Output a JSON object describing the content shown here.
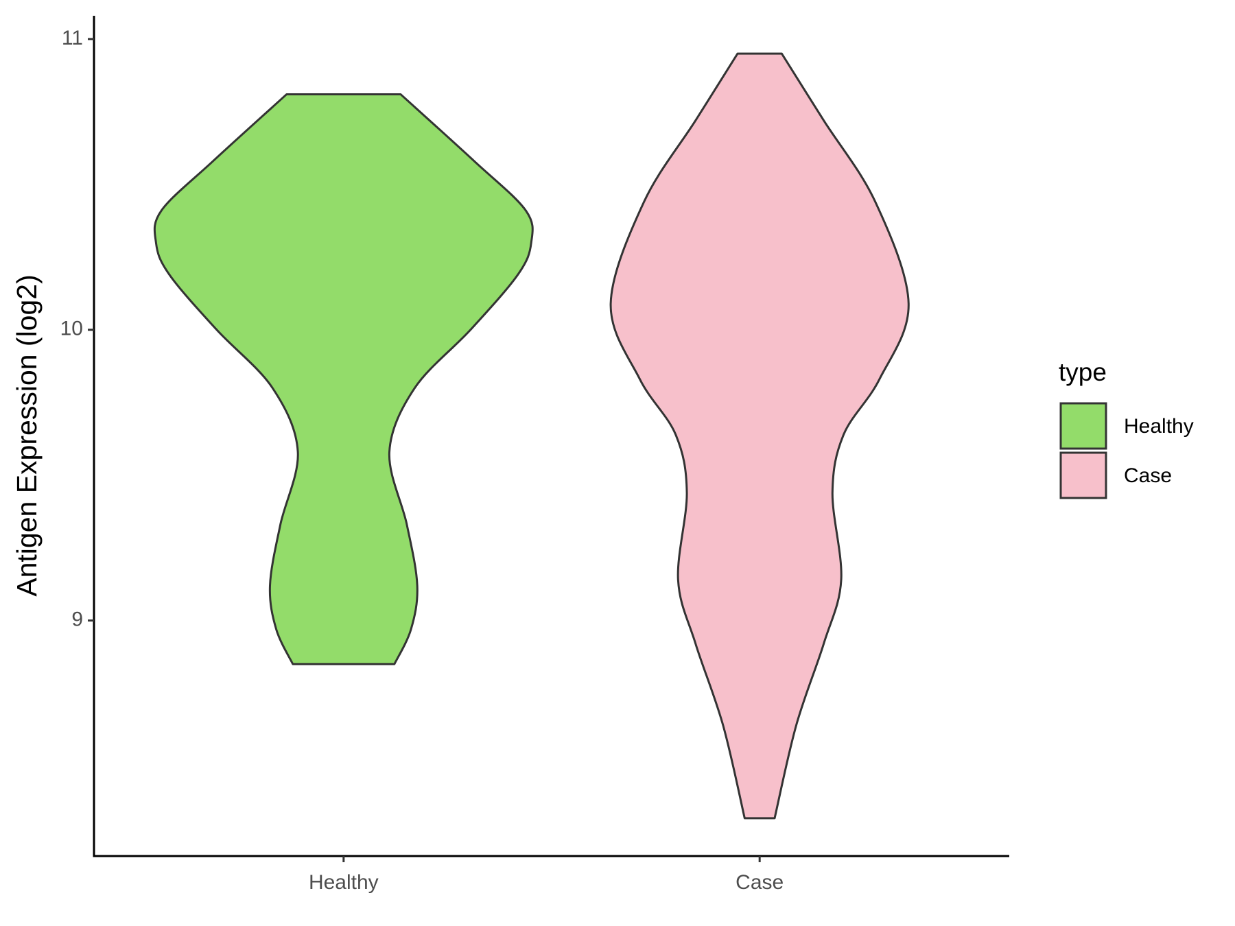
{
  "chart_data": {
    "type": "violin",
    "y_label": "Antigen Expression (log2)",
    "categories": [
      "Healthy",
      "Case"
    ],
    "legend_title": "type",
    "legend_position": "right",
    "ylim": [
      8.19,
      11.08
    ],
    "yticks": [
      9,
      10,
      11
    ],
    "series": [
      {
        "name": "Healthy",
        "color": "#93dc6a",
        "y": [
          10.81,
          10.58,
          10.41,
          10.3,
          10.19,
          10.0,
          9.8,
          9.58,
          9.33,
          9.12,
          8.97,
          8.85
        ],
        "width": [
          0.137,
          0.314,
          0.438,
          0.451,
          0.419,
          0.305,
          0.171,
          0.11,
          0.152,
          0.177,
          0.162,
          0.122
        ]
      },
      {
        "name": "Case",
        "color": "#f7c0cb",
        "y": [
          10.95,
          10.72,
          10.44,
          10.09,
          9.83,
          9.64,
          9.44,
          9.14,
          8.92,
          8.64,
          8.32
        ],
        "width": [
          0.053,
          0.154,
          0.278,
          0.358,
          0.288,
          0.202,
          0.175,
          0.196,
          0.154,
          0.088,
          0.036
        ]
      }
    ]
  }
}
